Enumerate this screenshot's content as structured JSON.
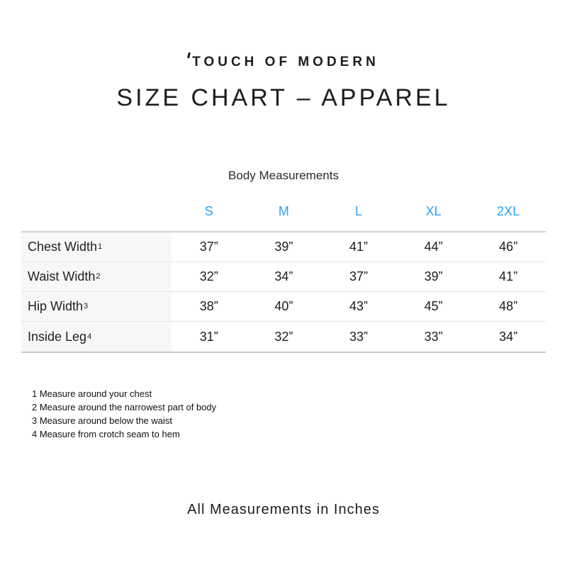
{
  "brand": {
    "logo_text": "TOUCH OF MODERN"
  },
  "header": {
    "title": "SIZE CHART – APPAREL"
  },
  "table": {
    "caption": "Body Measurements",
    "size_headers": [
      "S",
      "M",
      "L",
      "XL",
      "2XL"
    ],
    "rows": [
      {
        "label": "Chest Width",
        "footnote_ref": "1",
        "values": [
          "37”",
          "39”",
          "41”",
          "44”",
          "46”"
        ]
      },
      {
        "label": "Waist Width",
        "footnote_ref": "2",
        "values": [
          "32”",
          "34”",
          "37”",
          "39”",
          "41”"
        ]
      },
      {
        "label": "Hip Width",
        "footnote_ref": "3",
        "values": [
          "38”",
          "40”",
          "43”",
          "45”",
          "48”"
        ]
      },
      {
        "label": "Inside Leg",
        "footnote_ref": "4",
        "values": [
          "31”",
          "32”",
          "33”",
          "33”",
          "34”"
        ]
      }
    ],
    "footnotes": [
      "1 Measure around your chest",
      "2 Measure around the narrowest part of body",
      "3 Measure around below the waist",
      "4 Measure from crotch seam to hem"
    ]
  },
  "footer": {
    "note": "All Measurements in Inches"
  },
  "colors": {
    "accent_blue": "#29a2f4",
    "text_dark": "#1d1d1d",
    "row_label_bg": "#f7f7f7",
    "border_light": "#e4e4e4",
    "border_strong": "#cfcfcf"
  }
}
